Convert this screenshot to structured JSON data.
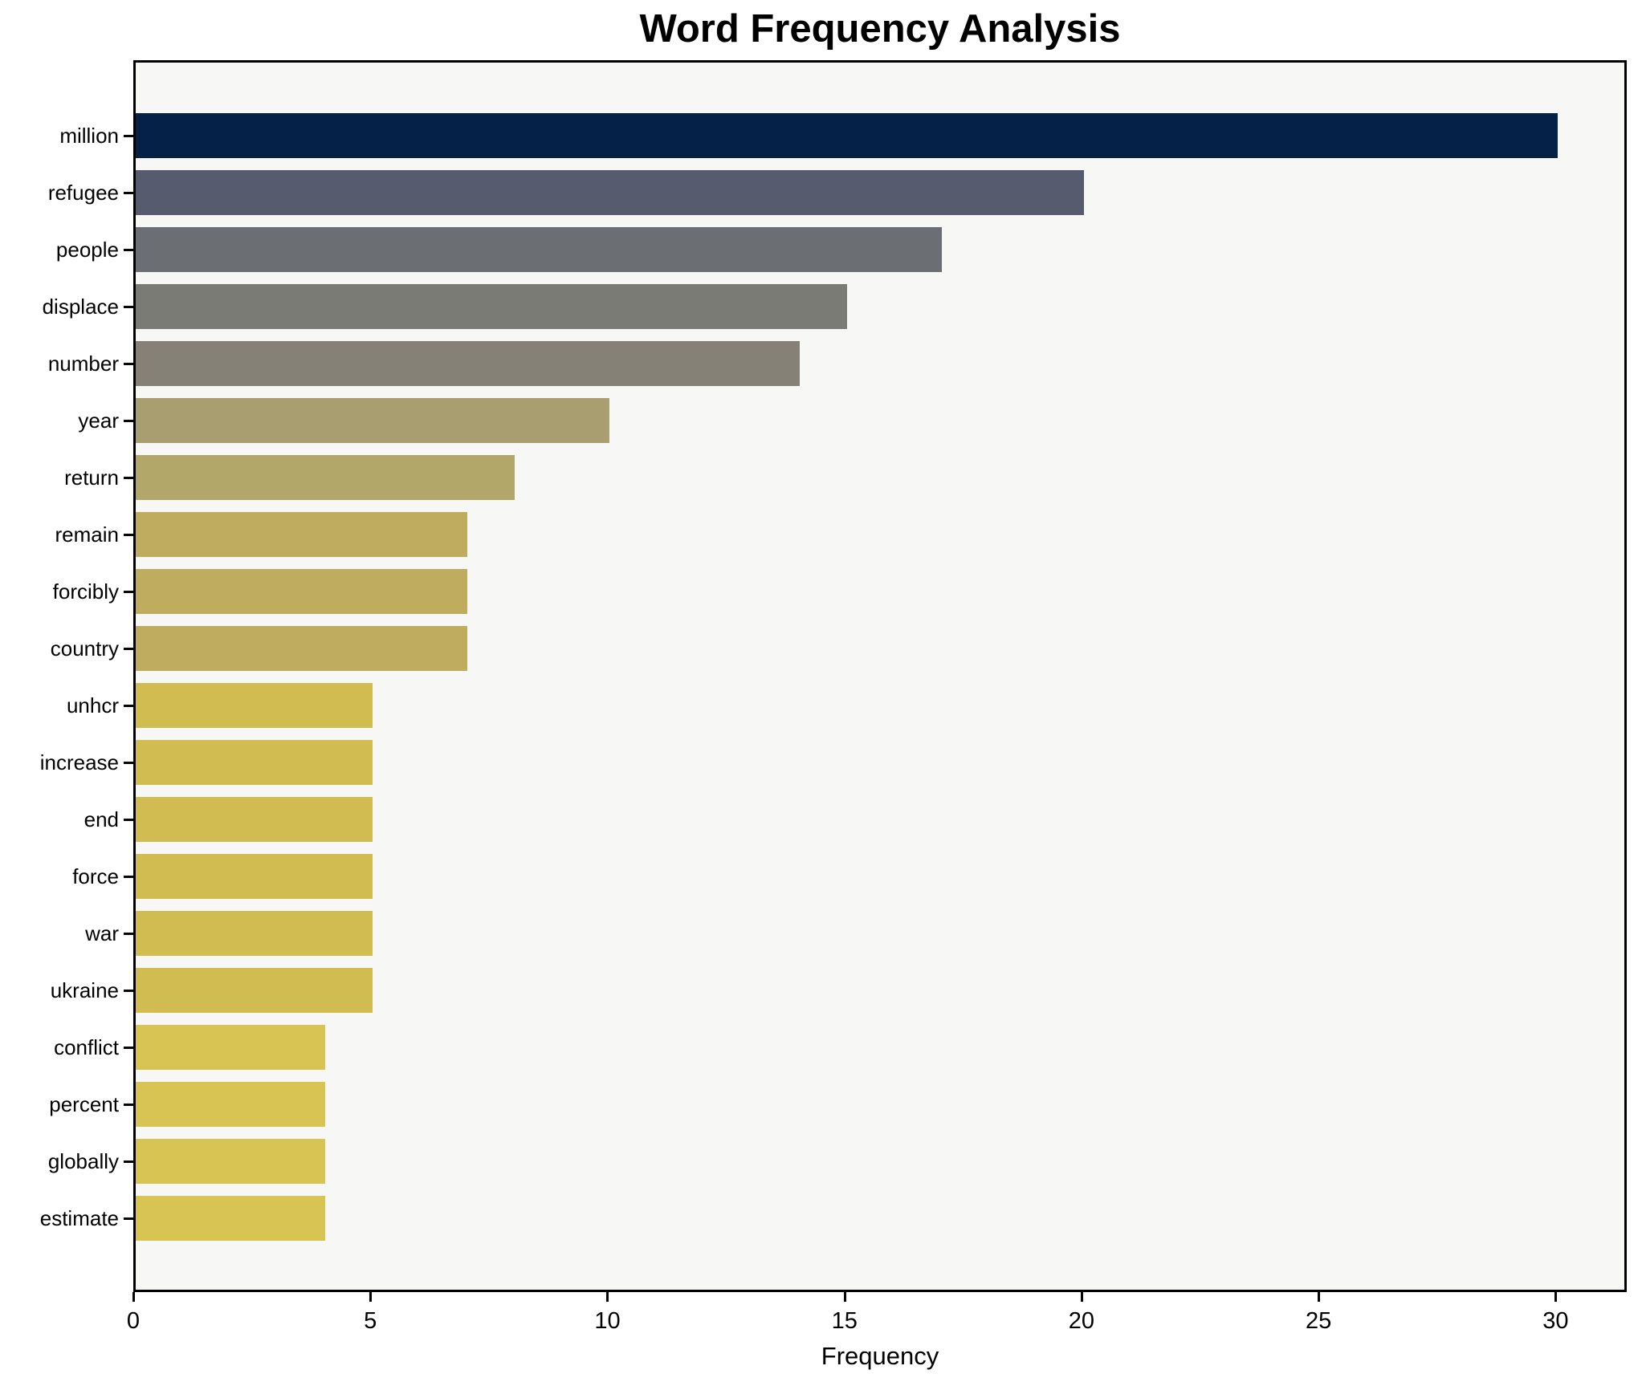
{
  "chart_data": {
    "type": "bar",
    "orientation": "horizontal",
    "title": "Word Frequency Analysis",
    "xlabel": "Frequency",
    "ylabel": "",
    "categories": [
      "million",
      "refugee",
      "people",
      "displace",
      "number",
      "year",
      "return",
      "remain",
      "forcibly",
      "country",
      "unhcr",
      "increase",
      "end",
      "force",
      "war",
      "ukraine",
      "conflict",
      "percent",
      "globally",
      "estimate"
    ],
    "values": [
      30,
      20,
      17,
      15,
      14,
      10,
      8,
      7,
      7,
      7,
      5,
      5,
      5,
      5,
      5,
      5,
      4,
      4,
      4,
      4
    ],
    "bar_colors": [
      "#062148",
      "#565C6D",
      "#6B6E72",
      "#7A7B74",
      "#858177",
      "#A89E6F",
      "#B2A668",
      "#BFAC5F",
      "#BFAC5F",
      "#BFAC5F",
      "#D1BC52",
      "#D1BC52",
      "#D1BC52",
      "#D1BC52",
      "#D1BC52",
      "#D1BC52",
      "#D8C453",
      "#D8C453",
      "#D8C453",
      "#D8C453"
    ],
    "xlim": [
      0,
      31.5
    ],
    "xticks": [
      0,
      5,
      10,
      15,
      20,
      25,
      30
    ],
    "grid": false,
    "legend_position": "none",
    "plot_background": "#F7F7F5",
    "figure_background": "#FFFFFF",
    "colormap": "cividis-reversed-by-value"
  }
}
